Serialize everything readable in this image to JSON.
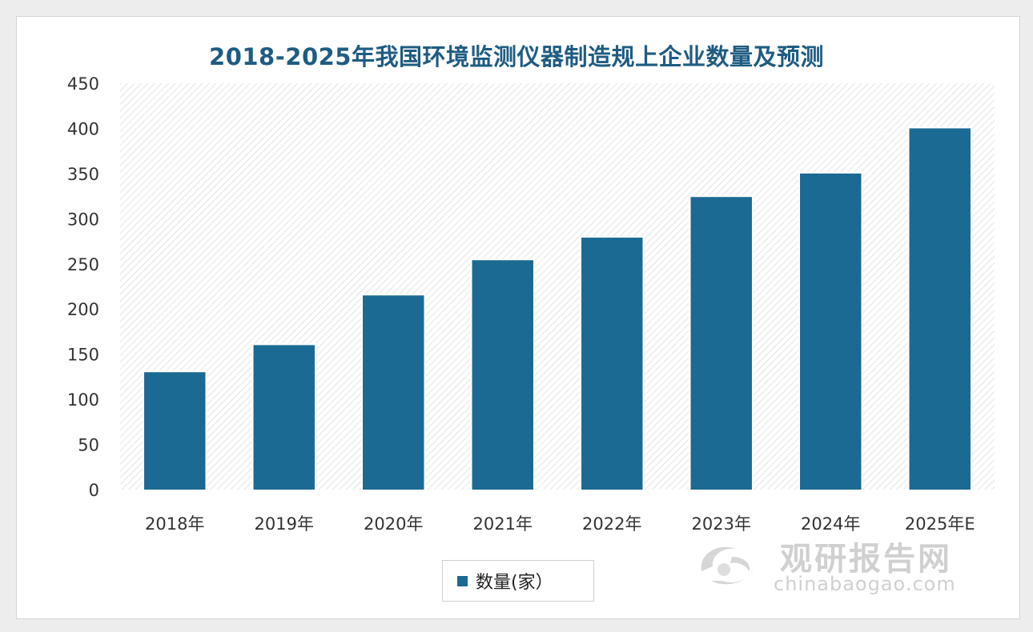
{
  "colors": {
    "bar": "#1b6a93",
    "title": "#1f5c82",
    "background": "#ededed"
  },
  "chart_data": {
    "type": "bar",
    "title": "2018-2025年我国环境监测仪器制造规上企业数量及预测",
    "categories": [
      "2018年",
      "2019年",
      "2020年",
      "2021年",
      "2022年",
      "2023年",
      "2024年",
      "2025年E"
    ],
    "series": [
      {
        "name": "数量(家）",
        "values": [
          130,
          160,
          215,
          254,
          279,
          324,
          350,
          400
        ]
      }
    ],
    "ylim": [
      0,
      450
    ],
    "yticks": [
      0,
      50,
      100,
      150,
      200,
      250,
      300,
      350,
      400,
      450
    ],
    "grid": false,
    "legend": "bottom-center"
  },
  "watermark": {
    "name": "观研报告网",
    "site": "chinabaogao.com"
  }
}
